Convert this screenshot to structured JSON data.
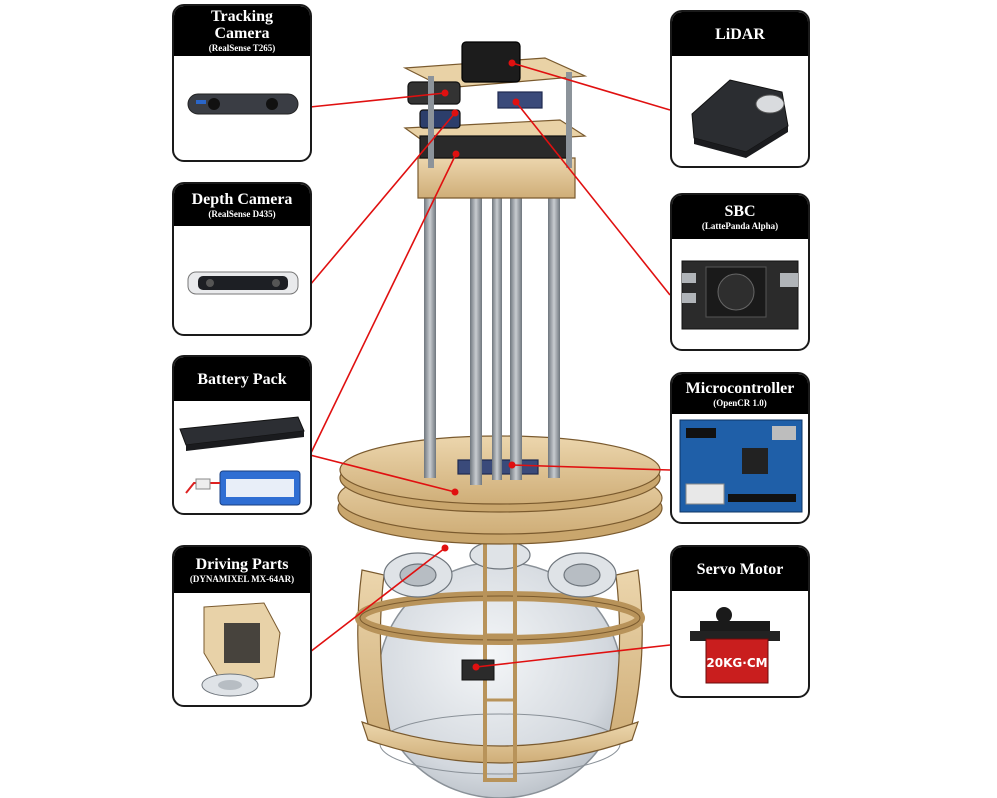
{
  "colors": {
    "callout_line": "#e01010",
    "header_bg": "#000000",
    "wood": "#e3c89a",
    "wood_dark": "#b8935a",
    "metal": "#9ea4ab",
    "sphere": "#d9dde2"
  },
  "components": [
    {
      "title": "Tracking Camera",
      "subtitle": "(RealSense T265)",
      "icon": "tracking-camera-icon"
    },
    {
      "title": "Depth Camera",
      "subtitle": "(RealSense D435)",
      "icon": "depth-camera-icon"
    },
    {
      "title": "Battery Pack",
      "subtitle": "",
      "icon": "battery-pack-icon"
    },
    {
      "title": "Driving Parts",
      "subtitle": "(DYNAMIXEL MX-64AR)",
      "icon": "driving-parts-icon"
    },
    {
      "title": "LiDAR",
      "subtitle": "",
      "icon": "lidar-icon"
    },
    {
      "title": "SBC",
      "subtitle": "(LattePanda Alpha)",
      "icon": "sbc-board-icon"
    },
    {
      "title": "Microcontroller",
      "subtitle": "(OpenCR 1.0)",
      "icon": "microcontroller-board-icon"
    },
    {
      "title": "Servo Motor",
      "subtitle": "",
      "icon": "servo-motor-icon"
    }
  ],
  "servo_label": "20KG·CM"
}
